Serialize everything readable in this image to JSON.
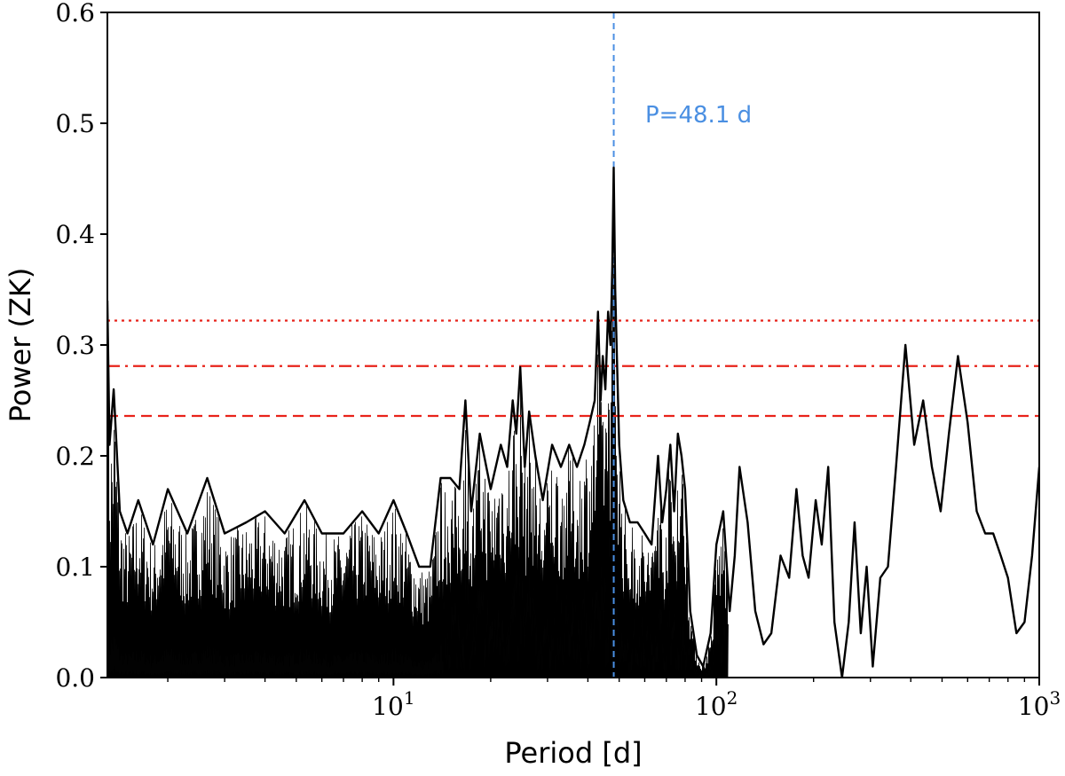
{
  "chart_data": {
    "type": "line",
    "xlabel": "Period [d]",
    "ylabel": "Power (ZK)",
    "xscale": "log",
    "xlim": [
      1.3,
      1000
    ],
    "ylim": [
      0,
      0.6
    ],
    "xticks": [
      {
        "value": 10,
        "base": "10",
        "exp": "1"
      },
      {
        "value": 100,
        "base": "10",
        "exp": "2"
      },
      {
        "value": 1000,
        "base": "10",
        "exp": "3"
      }
    ],
    "yticks": [
      "0.0",
      "0.1",
      "0.2",
      "0.3",
      "0.4",
      "0.5",
      "0.6"
    ],
    "grid": false,
    "threshold_lines": [
      {
        "value": 0.322,
        "style": "dotted",
        "color": "#e8231a"
      },
      {
        "value": 0.281,
        "style": "dashdot",
        "color": "#e8231a"
      },
      {
        "value": 0.236,
        "style": "dashed",
        "color": "#e8231a"
      }
    ],
    "marked_period": {
      "value": 48.1,
      "label": "P=48.1 d",
      "color": "#4a8fe2"
    },
    "series": [
      {
        "color": "#000000",
        "x": [
          1.3,
          1.32,
          1.36,
          1.42,
          1.5,
          1.62,
          1.8,
          2.0,
          2.3,
          2.65,
          3.0,
          3.5,
          4.0,
          4.6,
          5.3,
          6.0,
          7.0,
          8.0,
          9.0,
          10.0,
          11.0,
          12.0,
          13.0,
          14.0,
          15.0,
          16.0,
          16.7,
          17.4,
          18.5,
          20.0,
          21.5,
          22.5,
          23.4,
          24.0,
          24.7,
          25.5,
          26.3,
          27.5,
          29.0,
          31.0,
          33.0,
          35.0,
          37.0,
          39.0,
          40.5,
          42.0,
          43.0,
          43.8,
          44.5,
          45.3,
          46.2,
          47.0,
          47.6,
          48.1,
          48.6,
          49.3,
          50.0,
          51.5,
          54.0,
          57.0,
          60.0,
          63.0,
          66.0,
          68.0,
          70.0,
          72.0,
          74.0,
          76.0,
          78.0,
          80.0,
          83.0,
          87.0,
          91.0,
          96.0,
          100.0,
          105.0,
          110.0,
          114.0,
          118.0,
          125.0,
          132.0,
          140.0,
          148.0,
          158.0,
          168.0,
          177.0,
          185.0,
          193.0,
          203.0,
          212.0,
          222.0,
          232.0,
          245.0,
          257.0,
          268.0,
          280.0,
          292.0,
          305.0,
          322.0,
          340.0,
          360.0,
          385.0,
          410.0,
          437.0,
          465.0,
          495.0,
          525.0,
          560.0,
          600.0,
          640.0,
          680.0,
          720.0,
          760.0,
          800.0,
          850.0,
          900.0,
          950.0,
          1000.0
        ],
        "y": [
          0.34,
          0.21,
          0.26,
          0.15,
          0.13,
          0.16,
          0.12,
          0.17,
          0.13,
          0.18,
          0.13,
          0.14,
          0.15,
          0.13,
          0.16,
          0.13,
          0.13,
          0.15,
          0.13,
          0.16,
          0.13,
          0.1,
          0.1,
          0.18,
          0.18,
          0.17,
          0.25,
          0.15,
          0.22,
          0.17,
          0.21,
          0.19,
          0.25,
          0.22,
          0.28,
          0.19,
          0.24,
          0.2,
          0.16,
          0.21,
          0.19,
          0.21,
          0.19,
          0.21,
          0.23,
          0.25,
          0.33,
          0.25,
          0.29,
          0.26,
          0.33,
          0.3,
          0.37,
          0.46,
          0.35,
          0.28,
          0.21,
          0.16,
          0.14,
          0.14,
          0.13,
          0.12,
          0.2,
          0.14,
          0.17,
          0.21,
          0.15,
          0.22,
          0.2,
          0.17,
          0.06,
          0.02,
          0.01,
          0.04,
          0.12,
          0.15,
          0.06,
          0.11,
          0.19,
          0.14,
          0.06,
          0.03,
          0.04,
          0.11,
          0.09,
          0.17,
          0.11,
          0.09,
          0.16,
          0.12,
          0.19,
          0.05,
          0.0,
          0.05,
          0.14,
          0.04,
          0.1,
          0.01,
          0.09,
          0.1,
          0.19,
          0.3,
          0.21,
          0.25,
          0.19,
          0.15,
          0.22,
          0.29,
          0.23,
          0.15,
          0.13,
          0.13,
          0.11,
          0.09,
          0.04,
          0.05,
          0.11,
          0.19
        ]
      }
    ]
  }
}
